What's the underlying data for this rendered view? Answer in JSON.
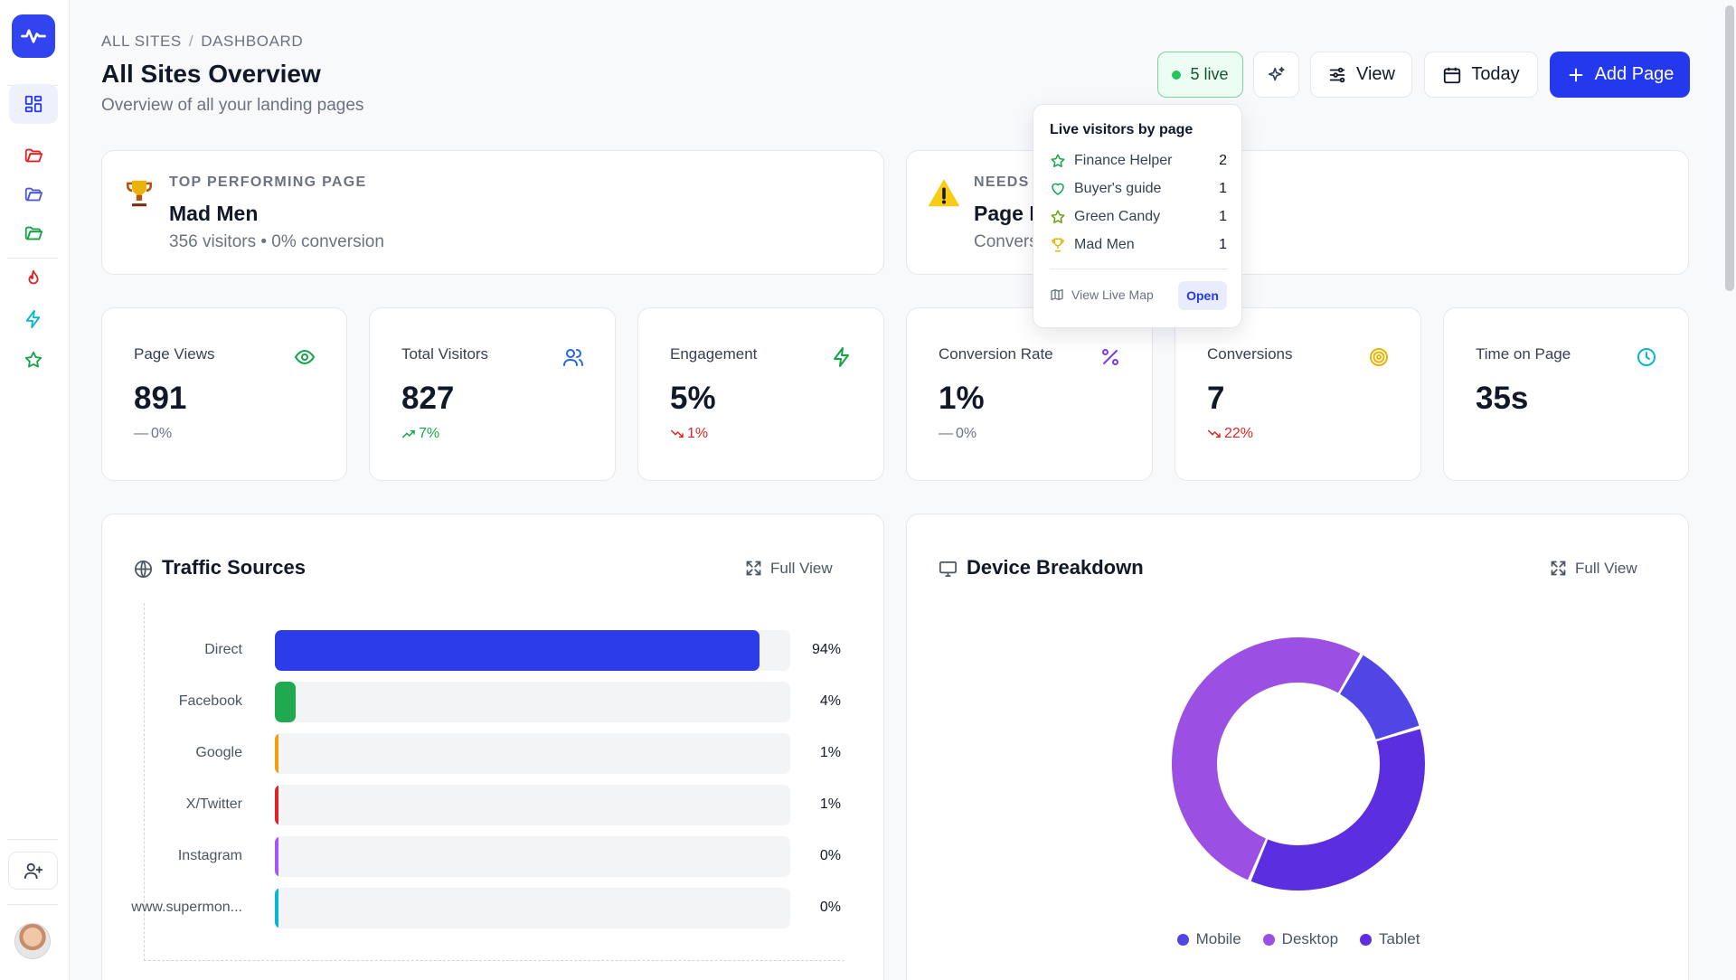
{
  "breadcrumb": {
    "root": "ALL SITES",
    "separator": "/",
    "current": "DASHBOARD"
  },
  "header": {
    "title": "All Sites Overview",
    "subtitle": "Overview of all your landing pages"
  },
  "toolbar": {
    "live_label": "5 live",
    "view_label": "View",
    "today_label": "Today",
    "add_label": "Add Page"
  },
  "top_cards": {
    "top_performing": {
      "label": "TOP PERFORMING PAGE",
      "title": "Mad Men",
      "subtitle": "356 visitors • 0% conversion",
      "icon": "trophy-icon"
    },
    "needs_attention": {
      "label": "NEEDS ATTENTION",
      "title": "Page Performance",
      "subtitle": "Conversion rate",
      "icon": "warning-icon"
    }
  },
  "stats": [
    {
      "label": "Page Views",
      "value": "891",
      "change": "0%",
      "trend": "neutral",
      "icon": "eye-icon",
      "color": "#16a34a"
    },
    {
      "label": "Total Visitors",
      "value": "827",
      "change": "7%",
      "trend": "up",
      "icon": "users-icon",
      "color": "#2563eb"
    },
    {
      "label": "Engagement",
      "value": "5%",
      "change": "1%",
      "trend": "down",
      "icon": "lightning-icon",
      "color": "#16a34a"
    },
    {
      "label": "Conversion Rate",
      "value": "1%",
      "change": "0%",
      "trend": "neutral",
      "icon": "percent-icon",
      "color": "#7c3aed"
    },
    {
      "label": "Conversions",
      "value": "7",
      "change": "22%",
      "trend": "down",
      "icon": "target-icon",
      "color": "#eab308"
    },
    {
      "label": "Time on Page",
      "value": "35s",
      "change": "",
      "trend": "none",
      "icon": "clock-icon",
      "color": "#06b6d4"
    }
  ],
  "traffic": {
    "title": "Traffic Sources",
    "full_view": "Full View",
    "sources": [
      {
        "name": "Direct",
        "value": 94,
        "label": "94%",
        "color": "#2d3ceb"
      },
      {
        "name": "Facebook",
        "value": 4,
        "label": "4%",
        "color": "#1faa4f"
      },
      {
        "name": "Google",
        "value": 1,
        "label": "1%",
        "color": "#f59e0b"
      },
      {
        "name": "X/Twitter",
        "value": 1,
        "label": "1%",
        "color": "#dc2626"
      },
      {
        "name": "Instagram",
        "value": 0,
        "label": "0%",
        "color": "#a855f7"
      },
      {
        "name": "www.supermon...",
        "value": 0,
        "label": "0%",
        "color": "#06b6d4"
      }
    ]
  },
  "devices": {
    "title": "Device Breakdown",
    "full_view": "Full View",
    "segments": [
      {
        "name": "Mobile",
        "value": 12,
        "color": "#4f46e5"
      },
      {
        "name": "Tablet",
        "value": 36,
        "color": "#5b2ee0"
      },
      {
        "name": "Desktop",
        "value": 52,
        "color": "#9b4fe3"
      }
    ],
    "legend": [
      {
        "name": "Mobile",
        "color": "#4f46e5"
      },
      {
        "name": "Desktop",
        "color": "#9b4fe3"
      },
      {
        "name": "Tablet",
        "color": "#5b2ee0"
      }
    ]
  },
  "popover": {
    "title": "Live visitors by page",
    "rows": [
      {
        "name": "Finance Helper",
        "count": "2",
        "icon": "star-icon",
        "color": "#16a34a"
      },
      {
        "name": "Buyer's guide",
        "count": "1",
        "icon": "heart-icon",
        "color": "#16a34a"
      },
      {
        "name": "Green Candy",
        "count": "1",
        "icon": "star-icon",
        "color": "#65a30d"
      },
      {
        "name": "Mad Men",
        "count": "1",
        "icon": "trophy-icon",
        "color": "#eab308"
      }
    ],
    "map_label": "View Live Map",
    "open_label": "Open"
  }
}
